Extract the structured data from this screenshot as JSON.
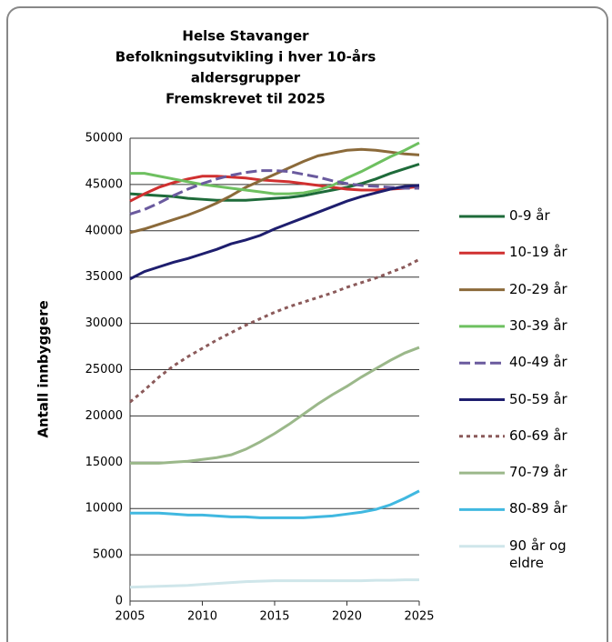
{
  "chart_data": {
    "type": "line",
    "title": [
      "Helse Stavanger",
      "Befolkningsutvikling i hver 10-års",
      "aldersgrupper",
      "Fremskrevet til 2025"
    ],
    "y_label": "Antall innbyggere",
    "x": [
      2005,
      2006,
      2007,
      2008,
      2009,
      2010,
      2011,
      2012,
      2013,
      2014,
      2015,
      2016,
      2017,
      2018,
      2019,
      2020,
      2021,
      2022,
      2023,
      2024,
      2025
    ],
    "xlim": [
      2005,
      2025
    ],
    "xticks": [
      2005,
      2010,
      2015,
      2020,
      2025
    ],
    "ylim": [
      0,
      50000
    ],
    "yticks": [
      0,
      5000,
      10000,
      15000,
      20000,
      25000,
      30000,
      35000,
      40000,
      45000,
      50000
    ],
    "grid": true,
    "legend": "right",
    "series": [
      {
        "name": "0-9 år",
        "color": "#1e6b3a",
        "dash": "solid",
        "values": [
          44000,
          43900,
          43800,
          43700,
          43500,
          43400,
          43300,
          43300,
          43300,
          43400,
          43500,
          43600,
          43800,
          44100,
          44400,
          44700,
          45100,
          45600,
          46200,
          46700,
          47200
        ]
      },
      {
        "name": "10-19 år",
        "color": "#d03030",
        "dash": "solid",
        "values": [
          43200,
          44000,
          44700,
          45200,
          45600,
          45900,
          45900,
          45800,
          45700,
          45500,
          45400,
          45300,
          45100,
          44900,
          44700,
          44500,
          44400,
          44400,
          44500,
          44600,
          44800
        ]
      },
      {
        "name": "20-29 år",
        "color": "#8b6a3a",
        "dash": "solid",
        "values": [
          39800,
          40200,
          40700,
          41200,
          41700,
          42300,
          43000,
          43800,
          44700,
          45400,
          46100,
          46800,
          47500,
          48100,
          48400,
          48700,
          48800,
          48700,
          48500,
          48300,
          48200
        ]
      },
      {
        "name": "30-39 år",
        "color": "#6ec060",
        "dash": "solid",
        "values": [
          46200,
          46200,
          45900,
          45600,
          45300,
          45000,
          44800,
          44600,
          44400,
          44200,
          44000,
          44000,
          44100,
          44400,
          44900,
          45700,
          46400,
          47200,
          48000,
          48700,
          49500
        ]
      },
      {
        "name": "40-49 år",
        "color": "#6a5a9e",
        "dash": "dashed",
        "values": [
          41800,
          42300,
          43000,
          43800,
          44500,
          45100,
          45600,
          46000,
          46300,
          46500,
          46500,
          46400,
          46100,
          45800,
          45400,
          45100,
          44900,
          44800,
          44700,
          44600,
          44600
        ]
      },
      {
        "name": "50-59 år",
        "color": "#1e1e6e",
        "dash": "solid",
        "values": [
          34800,
          35600,
          36100,
          36600,
          37000,
          37500,
          38000,
          38600,
          39000,
          39500,
          40200,
          40800,
          41400,
          42000,
          42600,
          43200,
          43700,
          44100,
          44500,
          44800,
          44900
        ]
      },
      {
        "name": "60-69 år",
        "color": "#8b5a5a",
        "dash": "dotted",
        "values": [
          21500,
          22800,
          24200,
          25400,
          26400,
          27300,
          28200,
          29000,
          29800,
          30500,
          31200,
          31800,
          32300,
          32800,
          33300,
          33900,
          34400,
          34900,
          35500,
          36100,
          36900
        ]
      },
      {
        "name": "70-79 år",
        "color": "#9bb88a",
        "dash": "solid",
        "values": [
          14900,
          14900,
          14900,
          15000,
          15100,
          15300,
          15500,
          15800,
          16400,
          17200,
          18100,
          19100,
          20200,
          21300,
          22300,
          23200,
          24200,
          25100,
          26000,
          26800,
          27400
        ]
      },
      {
        "name": "80-89 år",
        "color": "#40b8e0",
        "dash": "solid",
        "values": [
          9500,
          9500,
          9500,
          9400,
          9300,
          9300,
          9200,
          9100,
          9100,
          9000,
          9000,
          9000,
          9000,
          9100,
          9200,
          9400,
          9600,
          9900,
          10400,
          11100,
          11900
        ]
      },
      {
        "name": "90 år og eldre",
        "color": "#cfe6ea",
        "dash": "solid",
        "values": [
          1500,
          1550,
          1600,
          1650,
          1700,
          1800,
          1900,
          2000,
          2100,
          2150,
          2200,
          2200,
          2200,
          2200,
          2200,
          2200,
          2200,
          2250,
          2250,
          2300,
          2300
        ]
      }
    ]
  }
}
